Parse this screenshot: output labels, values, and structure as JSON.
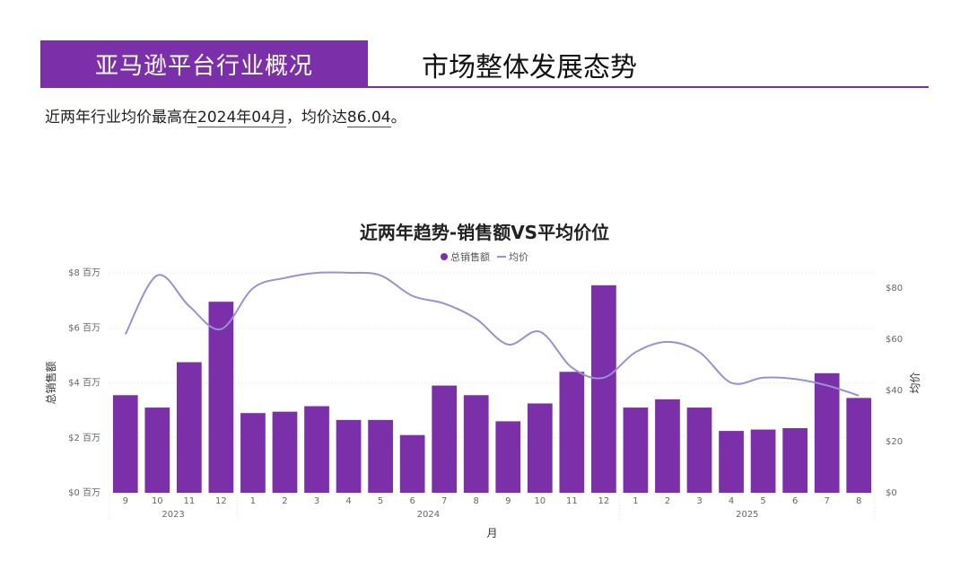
{
  "header": {
    "section_label": "亚马逊平台行业概况",
    "title": "市场整体发展态势"
  },
  "summary": {
    "prefix": "近两年行业均价最高在",
    "peak_month": "2024年04月",
    "middle": "，均价达",
    "peak_value": "86.04",
    "suffix": "。"
  },
  "colors": {
    "accent": "#7B2FA8",
    "line": "#9B8FD6"
  },
  "chart_data": {
    "type": "bar",
    "title": "近两年趋势-销售额VS平均价位",
    "legend": [
      "总销售额",
      "均价"
    ],
    "xlabel": "月",
    "ylabel_left": "总销售额",
    "ylabel_right": "均价",
    "ylim_left": [
      0,
      8
    ],
    "ylim_right": [
      0,
      86
    ],
    "yticks_left": [
      "$0 百万",
      "$2 百万",
      "$4 百万",
      "$6 百万",
      "$8 百万"
    ],
    "yticks_right": [
      "$0",
      "$20",
      "$40",
      "$60",
      "$80"
    ],
    "categories": [
      "9",
      "10",
      "11",
      "12",
      "1",
      "2",
      "3",
      "4",
      "5",
      "6",
      "7",
      "8",
      "9",
      "10",
      "11",
      "12",
      "1",
      "2",
      "3",
      "4",
      "5",
      "6",
      "7",
      "8"
    ],
    "years": [
      {
        "label": "2023",
        "start": 0,
        "end": 3
      },
      {
        "label": "2024",
        "start": 4,
        "end": 15
      },
      {
        "label": "2025",
        "start": 16,
        "end": 23
      }
    ],
    "series": [
      {
        "name": "总销售额",
        "type": "bar",
        "axis": "left",
        "values": [
          3.55,
          3.1,
          4.75,
          6.95,
          2.9,
          2.95,
          3.15,
          2.65,
          2.65,
          2.1,
          3.9,
          3.55,
          2.6,
          3.25,
          4.4,
          7.55,
          3.1,
          3.4,
          3.1,
          2.25,
          2.3,
          2.35,
          4.35,
          3.45
        ]
      },
      {
        "name": "均价",
        "type": "line",
        "axis": "right",
        "values": [
          62,
          85,
          73,
          64,
          80,
          84,
          86,
          86.04,
          85,
          77,
          74,
          68,
          58,
          63,
          49,
          45,
          55,
          59,
          55,
          43,
          45,
          44.5,
          42,
          38
        ]
      }
    ],
    "grid": true
  }
}
